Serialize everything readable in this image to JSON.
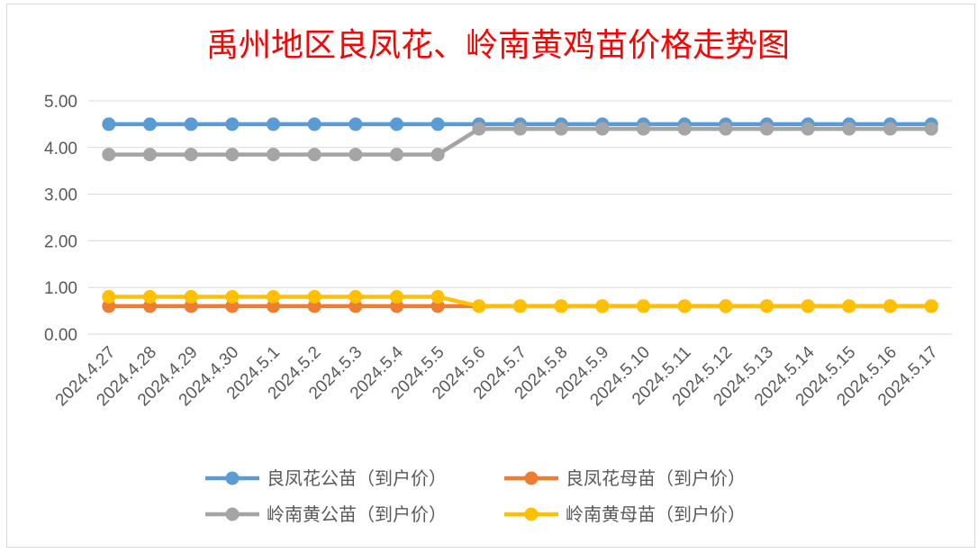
{
  "chart_data": {
    "type": "line",
    "title": "禹州地区良凤花、岭南黄鸡苗价格走势图",
    "xlabel": "",
    "ylabel": "",
    "ylim": [
      0,
      5
    ],
    "yticks": [
      "0.00",
      "1.00",
      "2.00",
      "3.00",
      "4.00",
      "5.00"
    ],
    "grid": true,
    "legend_position": "bottom",
    "categories": [
      "2024.4.27",
      "2024.4.28",
      "2024.4.29",
      "2024.4.30",
      "2024.5.1",
      "2024.5.2",
      "2024.5.3",
      "2024.5.4",
      "2024.5.5",
      "2024.5.6",
      "2024.5.7",
      "2024.5.8",
      "2024.5.9",
      "2024.5.10",
      "2024.5.11",
      "2024.5.12",
      "2024.5.13",
      "2024.5.14",
      "2024.5.15",
      "2024.5.16",
      "2024.5.17"
    ],
    "series": [
      {
        "name": "良凤花公苗（到户价）",
        "color": "#5b9bd5",
        "values": [
          4.5,
          4.5,
          4.5,
          4.5,
          4.5,
          4.5,
          4.5,
          4.5,
          4.5,
          4.5,
          4.5,
          4.5,
          4.5,
          4.5,
          4.5,
          4.5,
          4.5,
          4.5,
          4.5,
          4.5,
          4.5
        ]
      },
      {
        "name": "良凤花母苗（到户价）",
        "color": "#ed7d31",
        "values": [
          0.6,
          0.6,
          0.6,
          0.6,
          0.6,
          0.6,
          0.6,
          0.6,
          0.6,
          0.6,
          0.6,
          0.6,
          0.6,
          0.6,
          0.6,
          0.6,
          0.6,
          0.6,
          0.6,
          0.6,
          0.6
        ]
      },
      {
        "name": "岭南黄公苗（到户价）",
        "color": "#a5a5a5",
        "values": [
          3.85,
          3.85,
          3.85,
          3.85,
          3.85,
          3.85,
          3.85,
          3.85,
          3.85,
          4.4,
          4.4,
          4.4,
          4.4,
          4.4,
          4.4,
          4.4,
          4.4,
          4.4,
          4.4,
          4.4,
          4.4
        ]
      },
      {
        "name": "岭南黄母苗（到户价）",
        "color": "#ffc000",
        "values": [
          0.8,
          0.8,
          0.8,
          0.8,
          0.8,
          0.8,
          0.8,
          0.8,
          0.8,
          0.6,
          0.6,
          0.6,
          0.6,
          0.6,
          0.6,
          0.6,
          0.6,
          0.6,
          0.6,
          0.6,
          0.6
        ]
      }
    ]
  }
}
